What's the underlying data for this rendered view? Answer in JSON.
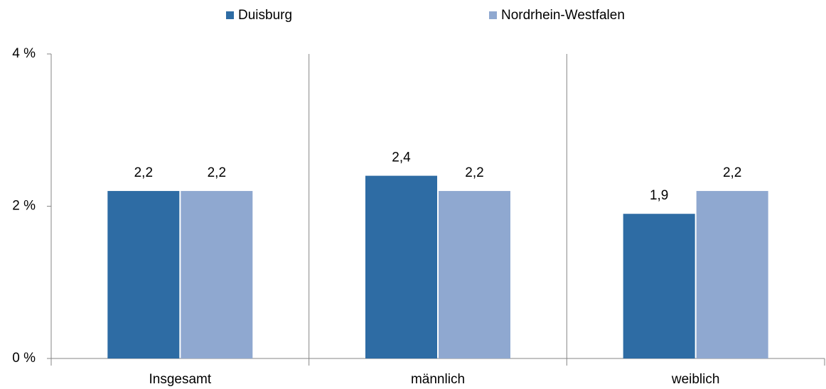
{
  "chart_data": {
    "type": "bar",
    "categories": [
      "Insgesamt",
      "männlich",
      "weiblich"
    ],
    "series": [
      {
        "name": "Duisburg",
        "color": "#2e6ca4",
        "values": [
          2.2,
          2.4,
          1.9
        ],
        "value_labels": [
          "2,2",
          "2,4",
          "1,9"
        ]
      },
      {
        "name": "Nordrhein-Westfalen",
        "color": "#8fa8d0",
        "values": [
          2.2,
          2.2,
          2.2
        ],
        "value_labels": [
          "2,2",
          "2,2",
          "2,2"
        ]
      }
    ],
    "ylim": [
      0,
      4
    ],
    "yticks": [
      {
        "value": 0,
        "label": "0 %"
      },
      {
        "value": 2,
        "label": "2 %"
      },
      {
        "value": 4,
        "label": "4 %"
      }
    ],
    "legend": "top"
  }
}
